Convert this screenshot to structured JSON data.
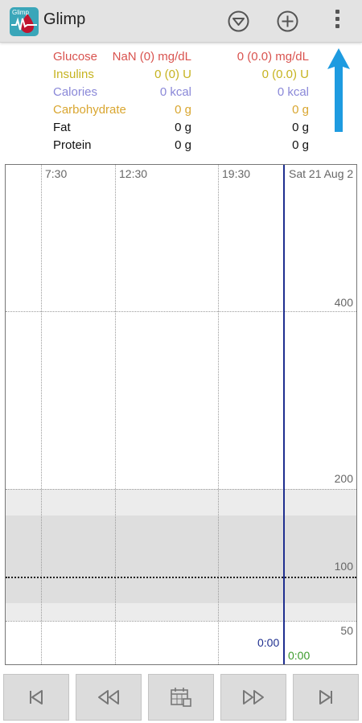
{
  "app": {
    "title": "Glimp",
    "icon_label": "Glimp",
    "icon": "glimp-app-icon",
    "actions": [
      {
        "name": "filter-icon"
      },
      {
        "name": "add-icon"
      },
      {
        "name": "overflow-menu-icon"
      }
    ]
  },
  "summary": [
    {
      "name": "Glucose",
      "v1": "NaN (0) mg/dL",
      "v2": "0 (0.0) mg/dL",
      "color": "#d9534f"
    },
    {
      "name": "Insulins",
      "v1": "0 (0) U",
      "v2": "0 (0.0) U",
      "color": "#c6b320"
    },
    {
      "name": "Calories",
      "v1": "0 kcal",
      "v2": "0 kcal",
      "color": "#8a88d8"
    },
    {
      "name": "Carbohydrate",
      "v1": "0 g",
      "v2": "0 g",
      "color": "#d9a630"
    },
    {
      "name": "Fat",
      "v1": "0 g",
      "v2": "0 g",
      "color": "#111111"
    },
    {
      "name": "Protein",
      "v1": "0 g",
      "v2": "0 g",
      "color": "#111111"
    }
  ],
  "chart": {
    "x_labels": [
      "7:30",
      "12:30",
      "19:30",
      "Sat 21 Aug 2"
    ],
    "y_labels": [
      "400",
      "200",
      "100",
      "50"
    ],
    "now_time": "0:00",
    "next_time": "0:00",
    "now_color": "#1f2f8f",
    "next_color": "#3a9a2a"
  },
  "chart_data": {
    "type": "line",
    "title": "",
    "xlabel": "",
    "ylabel": "",
    "x_tick_labels": [
      "7:30",
      "12:30",
      "19:30",
      "Sat 21 Aug 2"
    ],
    "y_tick_labels": [
      "400",
      "200",
      "100",
      "50"
    ],
    "series": [],
    "grid": true
  },
  "nav": [
    {
      "name": "first-page-icon"
    },
    {
      "name": "rewind-icon"
    },
    {
      "name": "calendar-icon"
    },
    {
      "name": "fast-forward-icon"
    },
    {
      "name": "last-page-icon"
    }
  ],
  "annotation": {
    "arrow_color": "#1e9be0"
  }
}
